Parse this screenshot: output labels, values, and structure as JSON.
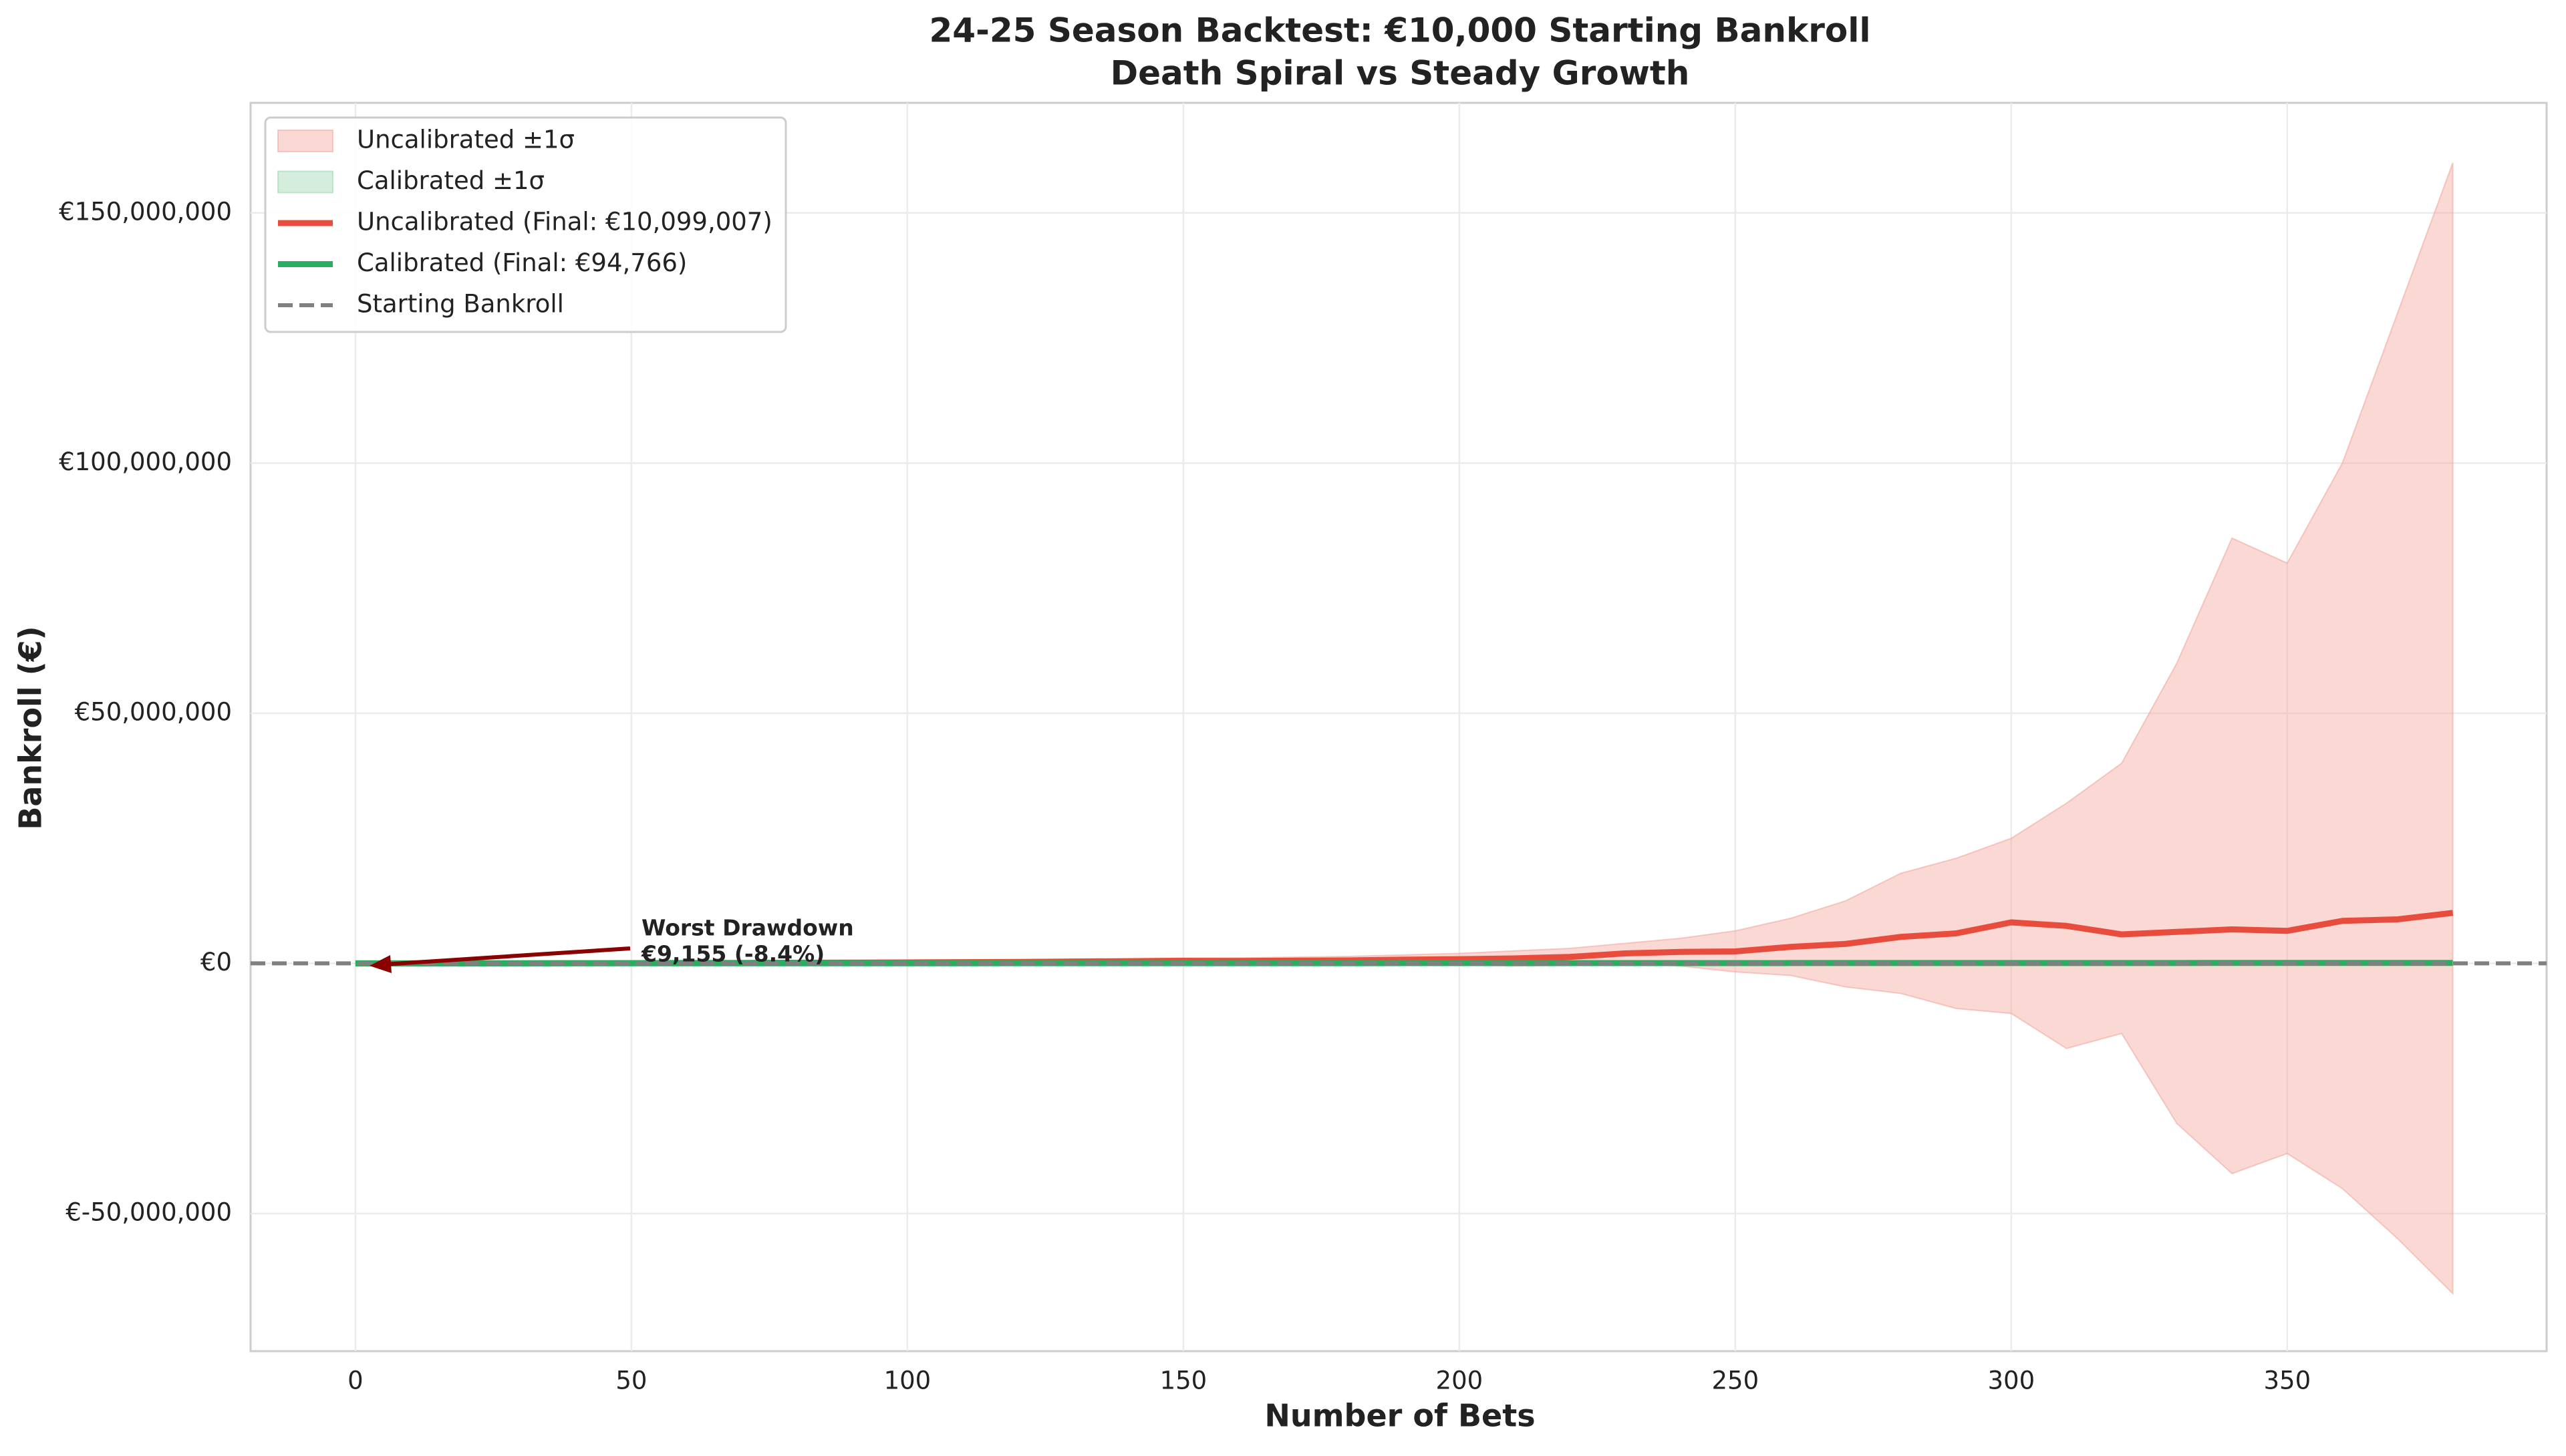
{
  "chart_data": {
    "type": "line",
    "title": "24-25 Season Backtest: €10,000 Starting Bankroll",
    "subtitle": "Death Spiral vs Steady Growth",
    "x_label": "Number of Bets",
    "y_label": "Bankroll (€)",
    "x": [
      0,
      10,
      20,
      30,
      40,
      50,
      60,
      70,
      80,
      90,
      100,
      110,
      120,
      130,
      140,
      150,
      160,
      170,
      180,
      190,
      200,
      210,
      220,
      230,
      240,
      250,
      260,
      270,
      280,
      290,
      300,
      310,
      320,
      330,
      340,
      350,
      360,
      370,
      380
    ],
    "bands": [
      {
        "name": "Uncalibrated ±1σ",
        "color": "#f4a9a0",
        "upper": [
          12000,
          20000,
          30000,
          45000,
          70000,
          100000,
          140000,
          190000,
          250000,
          320000,
          400000,
          500000,
          620000,
          760000,
          900000,
          1050000,
          1100000,
          1250000,
          1400000,
          1700000,
          2000000,
          2500000,
          3000000,
          4000000,
          5000000,
          6500000,
          9000000,
          12500000,
          18000000,
          21000000,
          25000000,
          32000000,
          40000000,
          60000000,
          85000000,
          80000000,
          100000000,
          130000000,
          160000000
        ],
        "lower": [
          8000,
          10000,
          14000,
          15000,
          20000,
          20000,
          20000,
          10000,
          10000,
          0,
          0,
          0,
          -20000,
          -40000,
          -50000,
          -60000,
          -100000,
          -150000,
          -200000,
          -200000,
          -300000,
          -500000,
          -400000,
          0,
          -500000,
          -1700000,
          -2400000,
          -4700000,
          -6000000,
          -9000000,
          -10000000,
          -17000000,
          -14000000,
          -32000000,
          -42000000,
          -38000000,
          -45000000,
          -55000000,
          -66000000
        ]
      },
      {
        "name": "Calibrated ±1σ",
        "color": "#9fd8b4",
        "upper": [
          11000,
          14000,
          17500,
          20500,
          24000,
          27000,
          30500,
          33500,
          37000,
          40000,
          43500,
          46500,
          50000,
          53000,
          56500,
          59500,
          63000,
          66000,
          69500,
          72500,
          76000,
          79000,
          82500,
          85500,
          89000,
          92000,
          95500,
          98500,
          102000,
          105000,
          108500,
          111500,
          115000,
          118000,
          121500,
          124500,
          128000,
          131000,
          134000
        ],
        "lower": [
          9000,
          10000,
          11500,
          12500,
          14000,
          15000,
          16500,
          17500,
          19000,
          20000,
          21500,
          22500,
          24000,
          25000,
          26500,
          27500,
          29000,
          30000,
          31500,
          32500,
          34000,
          35000,
          36500,
          37500,
          39000,
          40000,
          41500,
          42500,
          44000,
          45000,
          46500,
          47500,
          49000,
          50000,
          51500,
          52500,
          54000,
          55000,
          55500
        ]
      }
    ],
    "series": [
      {
        "name": "Uncalibrated (Final: €10,099,007)",
        "color": "#e74c3c",
        "values": [
          10000,
          15000,
          22000,
          30000,
          45000,
          60000,
          80000,
          100000,
          130000,
          160000,
          200000,
          250000,
          300000,
          380000,
          450000,
          520000,
          500000,
          550000,
          600000,
          750000,
          850000,
          1000000,
          1300000,
          2000000,
          2300000,
          2400000,
          3300000,
          3900000,
          5300000,
          6000000,
          8200000,
          7500000,
          5800000,
          6300000,
          6800000,
          6500000,
          8500000,
          8800000,
          10099007
        ]
      },
      {
        "name": "Calibrated (Final: €94,766)",
        "color": "#27ae60",
        "values": [
          10000,
          12000,
          14500,
          16500,
          19000,
          21000,
          23500,
          25500,
          28000,
          30000,
          32500,
          34500,
          37000,
          39000,
          41500,
          43500,
          46000,
          48000,
          50500,
          52500,
          55000,
          57000,
          59500,
          61500,
          64000,
          66000,
          68500,
          70500,
          73000,
          75000,
          77500,
          79500,
          82000,
          84000,
          86500,
          88500,
          91000,
          93000,
          94766
        ]
      }
    ],
    "reference_line": {
      "name": "Starting Bankroll",
      "value": 10000,
      "color": "#808080"
    },
    "annotation": {
      "lines": [
        "Worst Drawdown",
        "€9,155 (-8.4%)"
      ],
      "color": "#8b0000"
    },
    "xlim": [
      -19,
      397
    ],
    "ylim": [
      -77500000,
      172000000
    ],
    "xticks": [
      0,
      50,
      100,
      150,
      200,
      250,
      300,
      350
    ],
    "yticks": [
      {
        "value": -50000000,
        "label": "€-50,000,000"
      },
      {
        "value": 0,
        "label": "€0"
      },
      {
        "value": 50000000,
        "label": "€50,000,000"
      },
      {
        "value": 100000000,
        "label": "€100,000,000"
      },
      {
        "value": 150000000,
        "label": "€150,000,000"
      }
    ],
    "grid": true,
    "legend": "upper left"
  }
}
